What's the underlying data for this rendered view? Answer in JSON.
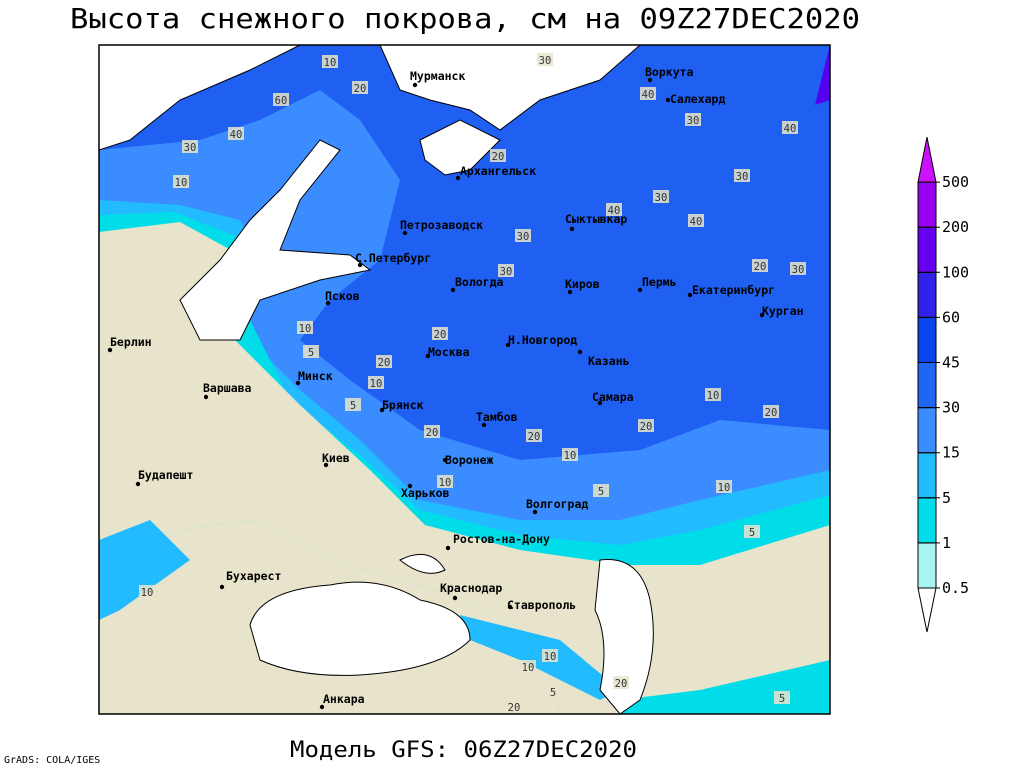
{
  "title": "Высота снежного покрова, см на 09Z27DEC2020",
  "footer": "Модель GFS: 06Z27DEC2020",
  "credit": "GrADS: COLA/IGES",
  "legend": {
    "levels": [
      0.5,
      1,
      5,
      15,
      30,
      45,
      60,
      100,
      200,
      500
    ],
    "colors": [
      "#ffffff",
      "#a8f4f4",
      "#00dde8",
      "#22bbff",
      "#3a8cff",
      "#1f66f5",
      "#0a44ee",
      "#3022e8",
      "#6600ee",
      "#9a00f0",
      "#cc11ff"
    ]
  },
  "cities": [
    "Мурманск",
    "Воркута",
    "Салехард",
    "Архангельск",
    "Петрозаводск",
    "Сыктывкар",
    "С.Петербург",
    "Вологда",
    "Киров",
    "Пермь",
    "Екатеринбург",
    "Курган",
    "Псков",
    "Берлин",
    "Н.Новгород",
    "Москва",
    "Казань",
    "Минск",
    "Варшава",
    "Самара",
    "Брянск",
    "Тамбов",
    "Киев",
    "Воронеж",
    "Будапешт",
    "Харьков",
    "Волгоград",
    "Ростов-на-Дону",
    "Бухарест",
    "Краснодар",
    "Ставрополь",
    "Анкара"
  ],
  "contour_labels": [
    20,
    10,
    30,
    40,
    60,
    30,
    40,
    40,
    30,
    10,
    20,
    30,
    30,
    40,
    40,
    30,
    30,
    20,
    30,
    10,
    5,
    20,
    20,
    10,
    5,
    20,
    20,
    20,
    10,
    20,
    10,
    10,
    10,
    5,
    5,
    10,
    10,
    10,
    5,
    20,
    20,
    5
  ]
}
